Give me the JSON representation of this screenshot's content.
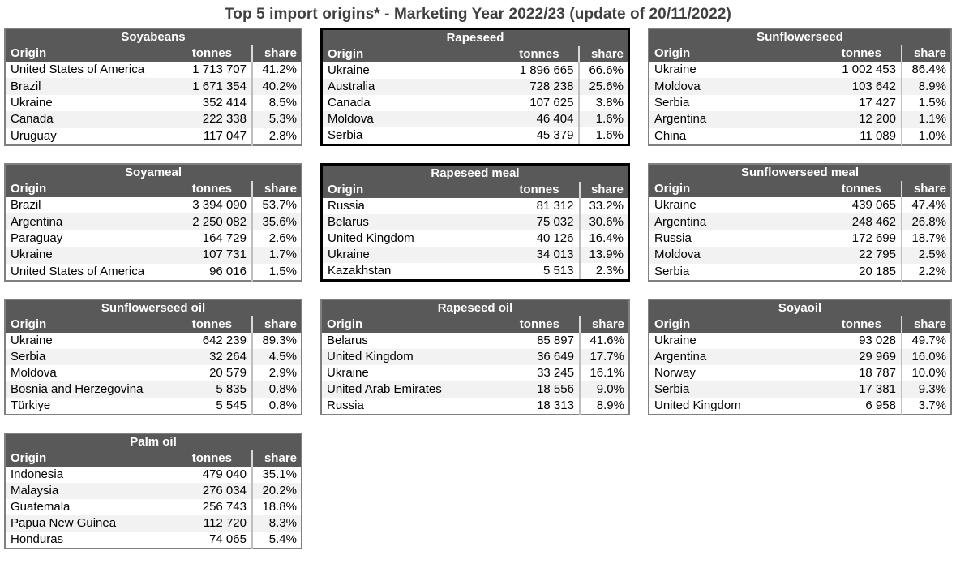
{
  "title": "Top 5 import origins* - Marketing Year 2022/23 (update of 20/11/2022)",
  "colors": {
    "header_bg": "#595959",
    "header_text": "#ffffff",
    "stripe": "#f2f2f2",
    "table_border": "#808080",
    "highlight_border": "#000000",
    "title_text": "#404040",
    "divider": "#bfbfbf"
  },
  "chart_data": [
    {
      "type": "table",
      "title": "Soyabeans",
      "highlight": false,
      "columns": [
        "Origin",
        "tonnes",
        "share"
      ],
      "rows": [
        [
          "United States of America",
          "1 713 707",
          "41.2%"
        ],
        [
          "Brazil",
          "1 671 354",
          "40.2%"
        ],
        [
          "Ukraine",
          "352 414",
          "8.5%"
        ],
        [
          "Canada",
          "222 338",
          "5.3%"
        ],
        [
          "Uruguay",
          "117 047",
          "2.8%"
        ]
      ]
    },
    {
      "type": "table",
      "title": "Rapeseed",
      "highlight": true,
      "columns": [
        "Origin",
        "tonnes",
        "share"
      ],
      "rows": [
        [
          "Ukraine",
          "1 896 665",
          "66.6%"
        ],
        [
          "Australia",
          "728 238",
          "25.6%"
        ],
        [
          "Canada",
          "107 625",
          "3.8%"
        ],
        [
          "Moldova",
          "46 404",
          "1.6%"
        ],
        [
          "Serbia",
          "45 379",
          "1.6%"
        ]
      ]
    },
    {
      "type": "table",
      "title": "Sunflowerseed",
      "highlight": false,
      "columns": [
        "Origin",
        "tonnes",
        "share"
      ],
      "rows": [
        [
          "Ukraine",
          "1 002 453",
          "86.4%"
        ],
        [
          "Moldova",
          "103 642",
          "8.9%"
        ],
        [
          "Serbia",
          "17 427",
          "1.5%"
        ],
        [
          "Argentina",
          "12 200",
          "1.1%"
        ],
        [
          "China",
          "11 089",
          "1.0%"
        ]
      ]
    },
    {
      "type": "table",
      "title": "Soyameal",
      "highlight": false,
      "columns": [
        "Origin",
        "tonnes",
        "share"
      ],
      "rows": [
        [
          "Brazil",
          "3 394 090",
          "53.7%"
        ],
        [
          "Argentina",
          "2 250 082",
          "35.6%"
        ],
        [
          "Paraguay",
          "164 729",
          "2.6%"
        ],
        [
          "Ukraine",
          "107 731",
          "1.7%"
        ],
        [
          "United States of America",
          "96 016",
          "1.5%"
        ]
      ]
    },
    {
      "type": "table",
      "title": "Rapeseed meal",
      "highlight": true,
      "columns": [
        "Origin",
        "tonnes",
        "share"
      ],
      "rows": [
        [
          "Russia",
          "81 312",
          "33.2%"
        ],
        [
          "Belarus",
          "75 032",
          "30.6%"
        ],
        [
          "United Kingdom",
          "40 126",
          "16.4%"
        ],
        [
          "Ukraine",
          "34 013",
          "13.9%"
        ],
        [
          "Kazakhstan",
          "5 513",
          "2.3%"
        ]
      ]
    },
    {
      "type": "table",
      "title": "Sunflowerseed meal",
      "highlight": false,
      "columns": [
        "Origin",
        "tonnes",
        "share"
      ],
      "rows": [
        [
          "Ukraine",
          "439 065",
          "47.4%"
        ],
        [
          "Argentina",
          "248 462",
          "26.8%"
        ],
        [
          "Russia",
          "172 699",
          "18.7%"
        ],
        [
          "Moldova",
          "22 795",
          "2.5%"
        ],
        [
          "Serbia",
          "20 185",
          "2.2%"
        ]
      ]
    },
    {
      "type": "table",
      "title": "Sunflowerseed oil",
      "highlight": false,
      "columns": [
        "Origin",
        "tonnes",
        "share"
      ],
      "rows": [
        [
          "Ukraine",
          "642 239",
          "89.3%"
        ],
        [
          "Serbia",
          "32 264",
          "4.5%"
        ],
        [
          "Moldova",
          "20 579",
          "2.9%"
        ],
        [
          "Bosnia and Herzegovina",
          "5 835",
          "0.8%"
        ],
        [
          "Türkiye",
          "5 545",
          "0.8%"
        ]
      ]
    },
    {
      "type": "table",
      "title": "Rapeseed oil",
      "highlight": false,
      "columns": [
        "Origin",
        "tonnes",
        "share"
      ],
      "rows": [
        [
          "Belarus",
          "85 897",
          "41.6%"
        ],
        [
          "United Kingdom",
          "36 649",
          "17.7%"
        ],
        [
          "Ukraine",
          "33 245",
          "16.1%"
        ],
        [
          "United Arab Emirates",
          "18 556",
          "9.0%"
        ],
        [
          "Russia",
          "18 313",
          "8.9%"
        ]
      ]
    },
    {
      "type": "table",
      "title": "Soyaoil",
      "highlight": false,
      "columns": [
        "Origin",
        "tonnes",
        "share"
      ],
      "rows": [
        [
          "Ukraine",
          "93 028",
          "49.7%"
        ],
        [
          "Argentina",
          "29 969",
          "16.0%"
        ],
        [
          "Norway",
          "18 787",
          "10.0%"
        ],
        [
          "Serbia",
          "17 381",
          "9.3%"
        ],
        [
          "United Kingdom",
          "6 958",
          "3.7%"
        ]
      ]
    },
    {
      "type": "table",
      "title": "Palm oil",
      "highlight": false,
      "columns": [
        "Origin",
        "tonnes",
        "share"
      ],
      "rows": [
        [
          "Indonesia",
          "479 040",
          "35.1%"
        ],
        [
          "Malaysia",
          "276 034",
          "20.2%"
        ],
        [
          "Guatemala",
          "256 743",
          "18.8%"
        ],
        [
          "Papua New Guinea",
          "112 720",
          "8.3%"
        ],
        [
          "Honduras",
          "74 065",
          "5.4%"
        ]
      ]
    }
  ]
}
